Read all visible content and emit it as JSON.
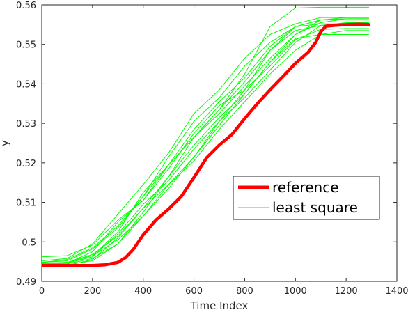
{
  "chart_data": {
    "type": "line",
    "title": "",
    "xlabel": "Time Index",
    "ylabel": "y",
    "xlim": [
      0,
      1400
    ],
    "ylim": [
      0.49,
      0.56
    ],
    "xticks": [
      "0",
      "200",
      "400",
      "600",
      "800",
      "1000",
      "1200",
      "1400"
    ],
    "yticks": [
      "0.49",
      "0.5",
      "0.51",
      "0.52",
      "0.53",
      "0.54",
      "0.55",
      "0.56"
    ],
    "grid": false,
    "legend_position": "lower-right",
    "colors": {
      "reference": "#ff0000",
      "least_square": "#00ff00",
      "axes": "#262626"
    },
    "series": [
      {
        "name": "reference",
        "style": "thick",
        "x": [
          0,
          100,
          200,
          250,
          300,
          330,
          360,
          400,
          450,
          500,
          550,
          600,
          650,
          700,
          750,
          800,
          850,
          900,
          950,
          1000,
          1050,
          1080,
          1100,
          1120,
          1150,
          1200,
          1250,
          1290
        ],
        "y": [
          0.494,
          0.494,
          0.494,
          0.4942,
          0.4948,
          0.496,
          0.498,
          0.5018,
          0.5055,
          0.5083,
          0.5115,
          0.5163,
          0.5213,
          0.5245,
          0.5272,
          0.5312,
          0.535,
          0.5385,
          0.5418,
          0.5452,
          0.548,
          0.5505,
          0.5532,
          0.5546,
          0.5548,
          0.555,
          0.5551,
          0.555
        ]
      },
      {
        "name": "least square",
        "style": "thin",
        "curves": [
          {
            "x": [
              0,
              100,
              200,
              300,
              400,
              500,
              600,
              700,
              800,
              900,
              1000,
              1100,
              1200,
              1290
            ],
            "y": [
              0.4945,
              0.4948,
              0.4965,
              0.5025,
              0.5125,
              0.5195,
              0.5265,
              0.5335,
              0.5425,
              0.5545,
              0.5592,
              0.5594,
              0.5594,
              0.5594
            ]
          },
          {
            "x": [
              0,
              100,
              200,
              300,
              400,
              500,
              600,
              700,
              800,
              900,
              1000,
              1100,
              1200,
              1290
            ],
            "y": [
              0.4942,
              0.4946,
              0.4975,
              0.505,
              0.5105,
              0.5185,
              0.5275,
              0.5345,
              0.5385,
              0.5445,
              0.5512,
              0.5538,
              0.554,
              0.554
            ]
          },
          {
            "x": [
              0,
              100,
              200,
              300,
              400,
              500,
              600,
              700,
              800,
              900,
              1000,
              1100,
              1200,
              1290
            ],
            "y": [
              0.4948,
              0.4955,
              0.4985,
              0.504,
              0.5115,
              0.5215,
              0.5305,
              0.5365,
              0.5445,
              0.5505,
              0.5545,
              0.5562,
              0.5568,
              0.5568
            ]
          },
          {
            "x": [
              0,
              100,
              200,
              300,
              400,
              500,
              600,
              700,
              800,
              900,
              1000,
              1100,
              1200,
              1290
            ],
            "y": [
              0.494,
              0.4942,
              0.4952,
              0.4995,
              0.5065,
              0.5145,
              0.5215,
              0.5305,
              0.5385,
              0.5485,
              0.5545,
              0.5562,
              0.5562,
              0.5562
            ]
          },
          {
            "x": [
              0,
              100,
              200,
              300,
              400,
              500,
              600,
              700,
              800,
              900,
              1000,
              1100,
              1200,
              1290
            ],
            "y": [
              0.4962,
              0.4965,
              0.4992,
              0.5055,
              0.5105,
              0.5195,
              0.5265,
              0.5325,
              0.5395,
              0.5465,
              0.5525,
              0.5555,
              0.5565,
              0.5565
            ]
          },
          {
            "x": [
              0,
              100,
              200,
              300,
              400,
              500,
              600,
              700,
              800,
              900,
              1000,
              1100,
              1200,
              1290
            ],
            "y": [
              0.4944,
              0.4946,
              0.4962,
              0.502,
              0.5095,
              0.5155,
              0.5235,
              0.5305,
              0.5365,
              0.5435,
              0.5505,
              0.5548,
              0.5555,
              0.5555
            ]
          },
          {
            "x": [
              0,
              100,
              200,
              300,
              400,
              500,
              600,
              700,
              800,
              900,
              1000,
              1100,
              1200,
              1290
            ],
            "y": [
              0.4938,
              0.494,
              0.4955,
              0.501,
              0.5085,
              0.5145,
              0.5205,
              0.5285,
              0.5355,
              0.5425,
              0.5485,
              0.5525,
              0.5535,
              0.5535
            ]
          },
          {
            "x": [
              0,
              100,
              200,
              300,
              400,
              500,
              600,
              700,
              800,
              900,
              1000,
              1100,
              1200,
              1290
            ],
            "y": [
              0.4952,
              0.4958,
              0.4995,
              0.507,
              0.5145,
              0.5225,
              0.5325,
              0.5385,
              0.5465,
              0.5525,
              0.5552,
              0.5568,
              0.5568,
              0.5568
            ]
          },
          {
            "x": [
              0,
              100,
              200,
              300,
              400,
              500,
              600,
              700,
              800,
              900,
              1000,
              1100,
              1200,
              1290
            ],
            "y": [
              0.4945,
              0.4948,
              0.4968,
              0.5015,
              0.5085,
              0.5165,
              0.5245,
              0.5315,
              0.5375,
              0.5455,
              0.5515,
              0.5525,
              0.5525,
              0.5525
            ]
          },
          {
            "x": [
              0,
              100,
              200,
              300,
              400,
              500,
              600,
              700,
              800,
              900,
              1000,
              1100,
              1200,
              1290
            ],
            "y": [
              0.4942,
              0.4944,
              0.4958,
              0.4995,
              0.5075,
              0.5165,
              0.5265,
              0.5335,
              0.5405,
              0.5485,
              0.5535,
              0.5548,
              0.555,
              0.555
            ]
          },
          {
            "x": [
              0,
              100,
              200,
              300,
              400,
              500,
              600,
              700,
              800,
              900,
              1000,
              1100,
              1200,
              1290
            ],
            "y": [
              0.4948,
              0.4952,
              0.4982,
              0.5035,
              0.5115,
              0.5195,
              0.5285,
              0.5355,
              0.5415,
              0.5495,
              0.5545,
              0.5552,
              0.5552,
              0.5552
            ]
          },
          {
            "x": [
              0,
              100,
              200,
              300,
              400,
              500,
              600,
              700,
              800,
              900,
              1000,
              1100,
              1200,
              1290
            ],
            "y": [
              0.4946,
              0.4948,
              0.4965,
              0.5005,
              0.5065,
              0.5135,
              0.5215,
              0.5295,
              0.5375,
              0.5455,
              0.5525,
              0.5562,
              0.5565,
              0.5565
            ]
          }
        ]
      }
    ]
  }
}
